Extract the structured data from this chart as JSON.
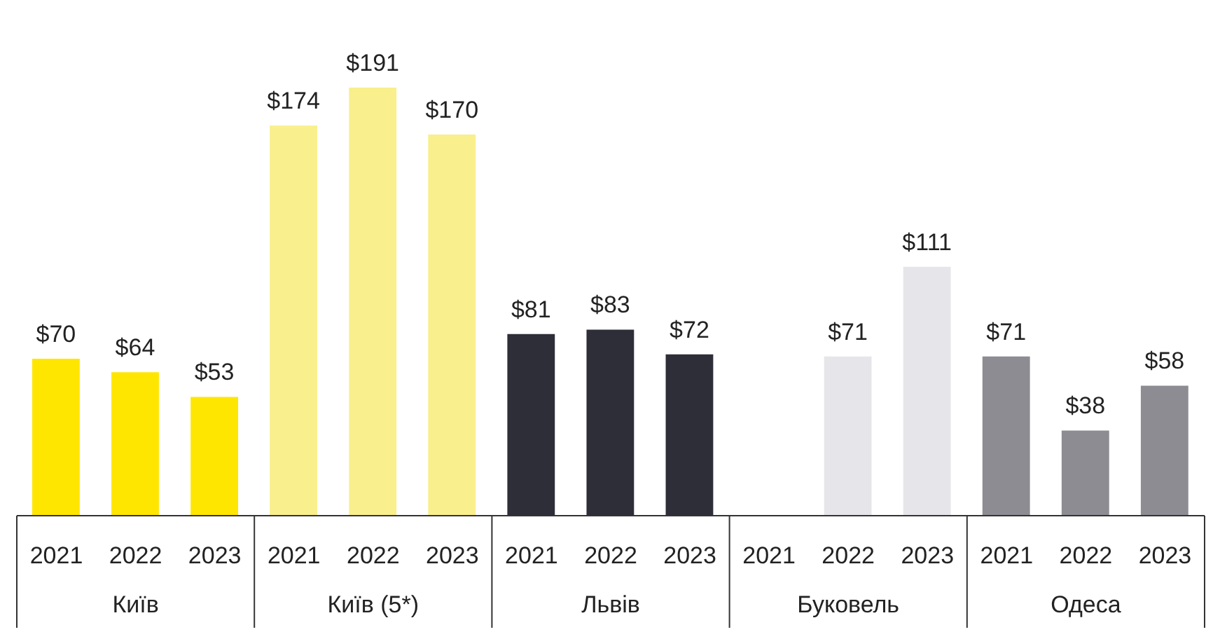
{
  "chart_data": {
    "type": "bar",
    "categories": [
      "2021",
      "2022",
      "2023",
      "2021",
      "2022",
      "2023",
      "2021",
      "2022",
      "2023",
      "2021",
      "2022",
      "2023",
      "2021",
      "2022",
      "2023"
    ],
    "values": [
      70,
      64,
      53,
      174,
      191,
      170,
      81,
      83,
      72,
      null,
      71,
      111,
      71,
      38,
      58
    ],
    "value_labels": [
      "$70",
      "$64",
      "$53",
      "$174",
      "$191",
      "$170",
      "$81",
      "$83",
      "$72",
      null,
      "$71",
      "$111",
      "$71",
      "$38",
      "$58"
    ],
    "colors": [
      "#ffe600",
      "#ffe600",
      "#ffe600",
      "#f9ef8c",
      "#f9ef8c",
      "#f9ef8c",
      "#2e2e38",
      "#2e2e38",
      "#2e2e38",
      "#e6e6ea",
      "#e6e6ea",
      "#e6e6ea",
      "#8c8c92",
      "#8c8c92",
      "#8c8c92"
    ],
    "annotations": [
      "Київ",
      "Київ (5*)",
      "Львів",
      "Буковель",
      "Одеса"
    ]
  }
}
